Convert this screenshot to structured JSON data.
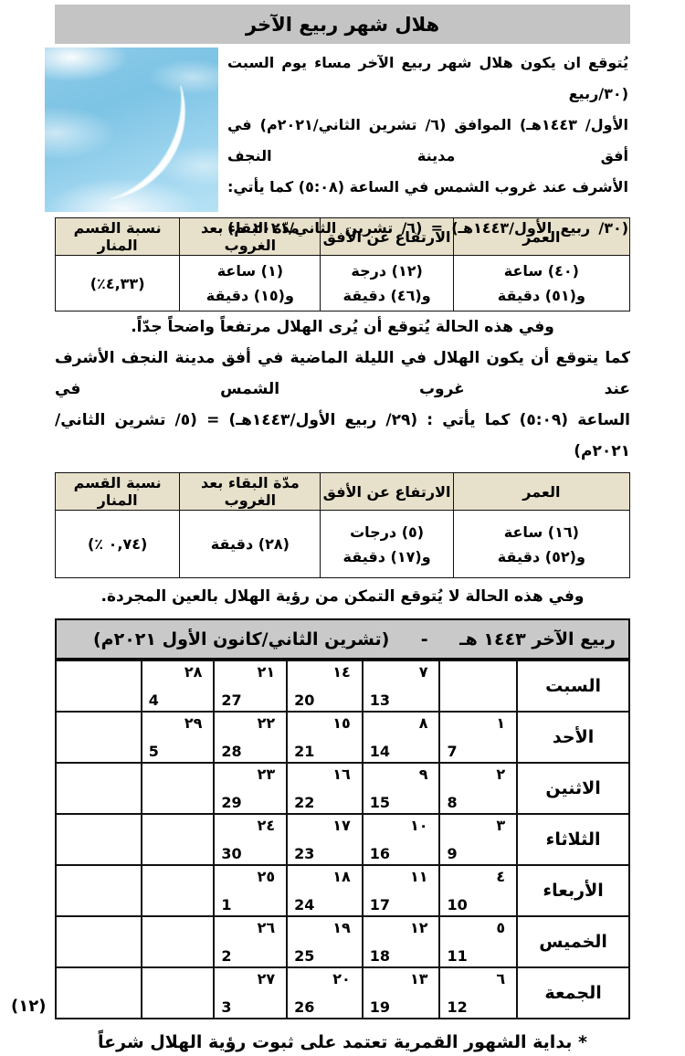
{
  "title": "هلال شهر ربيع الآخر",
  "moon_image": {
    "alt": "crescent-moon-in-sky"
  },
  "intro": {
    "line1": "يُتوقع ان يكون هلال شهر ربيع الآخر مساء يوم السبت (٣٠/ربيع",
    "line2": "الأول/ ١٤٤٣هـ) الموافق (٦/ تشرين الثاني/٢٠٢١م) في أفق مدينة النجف",
    "line3": "الأشرف عند غروب الشمس في الساعة (٥:٠٨) كما يأتي:",
    "equation": "(٣٠/ ربيع الأول/١٤٤٣هـ) = (٦/ تشرين الثاني/٢٠٢١ م)"
  },
  "observation_tables": [
    {
      "headers": [
        "العمر",
        "الارتفاع عن الأفق",
        "مدّة البقاء بعد الغروب",
        "نسبة القسم المنار"
      ],
      "age_l1": "(٤٠) ساعة",
      "age_l2": "و(٥١) دقيقة",
      "alt_l1": "(١٢) درجة",
      "alt_l2": "و(٤٦) دقيقة",
      "stay_l1": "(١) ساعة",
      "stay_l2": "و(١٥) دقيقة",
      "illum": "(٤,٣٣٪)"
    },
    {
      "headers": [
        "العمر",
        "الارتفاع عن الأفق",
        "مدّة البقاء بعد الغروب",
        "نسبة القسم المنار"
      ],
      "age_l1": "(١٦) ساعة",
      "age_l2": "و(٥٢) دقيقة",
      "alt_l1": "(٥) درجات",
      "alt_l2": "و(١٧) دقيقة",
      "stay_l1": "(٢٨) دقيقة",
      "illum": "(٠,٧٤ ٪)"
    }
  ],
  "notes": {
    "after_table1": "وفي هذه الحالة يُتوقع أن يُرى الهلال مرتفعاً واضحاً جدّاً.",
    "between1": "كما يتوقع أن يكون الهلال في الليلة الماضية في أفق مدينة النجف الأشرف عند غروب الشمس في",
    "between2": "الساعة (٥:٠٩) كما يأتي :  (٢٩/ ربيع الأول/١٤٤٣هـ) = (٥/ تشرين الثاني/٢٠٢١م)",
    "after_table2": "وفي هذه الحالة لا يُتوقع التمكن من رؤية الهلال بالعين المجردة."
  },
  "calendar": {
    "title_hijri": "ربيع الآخر ١٤٤٣ هـ",
    "dash": "-",
    "title_gregorian": "(تشرين الثاني/كانون الأول ٢٠٢١م)",
    "rows": [
      {
        "day": "السبت",
        "cells": [
          null,
          {
            "h": "٧",
            "g": "13"
          },
          {
            "h": "١٤",
            "g": "20"
          },
          {
            "h": "٢١",
            "g": "27"
          },
          {
            "h": "٢٨",
            "g": "4"
          },
          null
        ]
      },
      {
        "day": "الأحد",
        "cells": [
          {
            "h": "١",
            "g": "7"
          },
          {
            "h": "٨",
            "g": "14"
          },
          {
            "h": "١٥",
            "g": "21"
          },
          {
            "h": "٢٢",
            "g": "28"
          },
          {
            "h": "٢٩",
            "g": "5"
          },
          null
        ]
      },
      {
        "day": "الاثنين",
        "cells": [
          {
            "h": "٢",
            "g": "8"
          },
          {
            "h": "٩",
            "g": "15"
          },
          {
            "h": "١٦",
            "g": "22"
          },
          {
            "h": "٢٣",
            "g": "29"
          },
          null,
          null
        ]
      },
      {
        "day": "الثلاثاء",
        "cells": [
          {
            "h": "٣",
            "g": "9"
          },
          {
            "h": "١٠",
            "g": "16"
          },
          {
            "h": "١٧",
            "g": "23"
          },
          {
            "h": "٢٤",
            "g": "30"
          },
          null,
          null
        ]
      },
      {
        "day": "الأربعاء",
        "cells": [
          {
            "h": "٤",
            "g": "10"
          },
          {
            "h": "١١",
            "g": "17"
          },
          {
            "h": "١٨",
            "g": "24"
          },
          {
            "h": "٢٥",
            "g": "1"
          },
          null,
          null
        ]
      },
      {
        "day": "الخميس",
        "cells": [
          {
            "h": "٥",
            "g": "11"
          },
          {
            "h": "١٢",
            "g": "18"
          },
          {
            "h": "١٩",
            "g": "25"
          },
          {
            "h": "٢٦",
            "g": "2"
          },
          null,
          null
        ]
      },
      {
        "day": "الجمعة",
        "cells": [
          {
            "h": "٦",
            "g": "12"
          },
          {
            "h": "١٣",
            "g": "19"
          },
          {
            "h": "٢٠",
            "g": "26"
          },
          {
            "h": "٢٧",
            "g": "3"
          },
          null,
          null
        ]
      }
    ]
  },
  "footnote": "*  بداية الشهور القمرية تعتمد على ثبوت رؤية الهلال شرعاً",
  "page_number": "(١٢)",
  "colors": {
    "title_bar": "#c4c4c4",
    "calendar_header": "#c9c9c9",
    "table_header": "#e7e0ca",
    "sky_blue": "#7cc3e4"
  }
}
